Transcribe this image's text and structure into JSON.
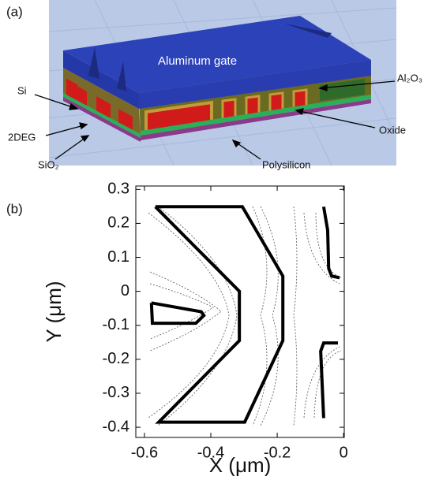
{
  "panel_a": {
    "label": "(a)",
    "gate": "Aluminum gate",
    "al2o3": "Al₂O₃",
    "si": "Si",
    "deg": "2DEG",
    "sio2": "SiO₂",
    "oxide": "Oxide",
    "poly": "Polysilicon"
  },
  "chart_data": {
    "type": "outline",
    "panel_label": "(b)",
    "x_label": "X (μm)",
    "y_label": "Y (μm)",
    "xlim": [
      -0.626,
      0.002
    ],
    "ylim": [
      -0.43,
      0.31
    ],
    "xticks": [
      -0.6,
      -0.4,
      -0.2,
      0
    ],
    "yticks": [
      0.3,
      0.2,
      0.1,
      0,
      -0.1,
      -0.2,
      -0.3,
      -0.4
    ],
    "color": "#000000",
    "outlines": [
      {
        "x": [
          -0.567,
          -0.305,
          -0.183,
          -0.183,
          -0.298,
          -0.557,
          -0.314,
          -0.314,
          -0.567
        ],
        "y": [
          0.249,
          0.249,
          0.045,
          -0.145,
          -0.385,
          -0.385,
          -0.145,
          0.0,
          0.249
        ]
      },
      {
        "x": [
          -0.579,
          -0.429,
          -0.421,
          -0.445,
          -0.576,
          -0.579
        ],
        "y": [
          -0.034,
          -0.06,
          -0.071,
          -0.094,
          -0.094,
          -0.034
        ]
      },
      {
        "x": [
          -0.06,
          -0.048,
          -0.045,
          -0.036,
          -0.012
        ],
        "y": [
          0.249,
          0.18,
          0.068,
          0.045,
          0.04
        ]
      },
      {
        "x": [
          -0.017,
          -0.06,
          -0.069,
          -0.06
        ],
        "y": [
          -0.152,
          -0.152,
          -0.176,
          -0.373
        ]
      }
    ]
  }
}
